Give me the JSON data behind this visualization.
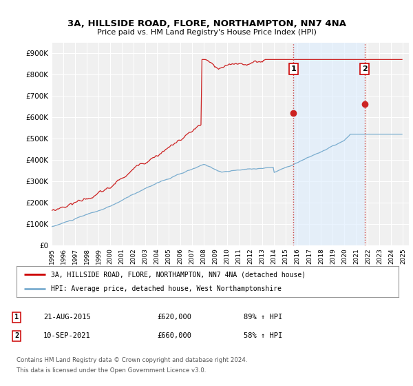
{
  "title": "3A, HILLSIDE ROAD, FLORE, NORTHAMPTON, NN7 4NA",
  "subtitle": "Price paid vs. HM Land Registry's House Price Index (HPI)",
  "ytick_values": [
    0,
    100000,
    200000,
    300000,
    400000,
    500000,
    600000,
    700000,
    800000,
    900000
  ],
  "ylim": [
    0,
    950000
  ],
  "xlim_start": 1995.0,
  "xlim_end": 2025.5,
  "xticks": [
    1995,
    1996,
    1997,
    1998,
    1999,
    2000,
    2001,
    2002,
    2003,
    2004,
    2005,
    2006,
    2007,
    2008,
    2009,
    2010,
    2011,
    2012,
    2013,
    2014,
    2015,
    2016,
    2017,
    2018,
    2019,
    2020,
    2021,
    2022,
    2023,
    2024,
    2025
  ],
  "legend_entries": [
    "3A, HILLSIDE ROAD, FLORE, NORTHAMPTON, NN7 4NA (detached house)",
    "HPI: Average price, detached house, West Northamptonshire"
  ],
  "legend_colors": [
    "#cc0000",
    "#7aadcf"
  ],
  "sale1_x": 2015.64,
  "sale1_y": 620000,
  "sale2_x": 2021.71,
  "sale2_y": 660000,
  "vline_color": "#cc4444",
  "vline_style": ":",
  "shade_color": "#ddeeff",
  "shade_alpha": 0.6,
  "bg_color": "#ffffff",
  "plot_bg_color": "#f0f0f0",
  "grid_color": "#ffffff",
  "hpi_line_color": "#7aadcf",
  "sale_line_color": "#cc2222"
}
